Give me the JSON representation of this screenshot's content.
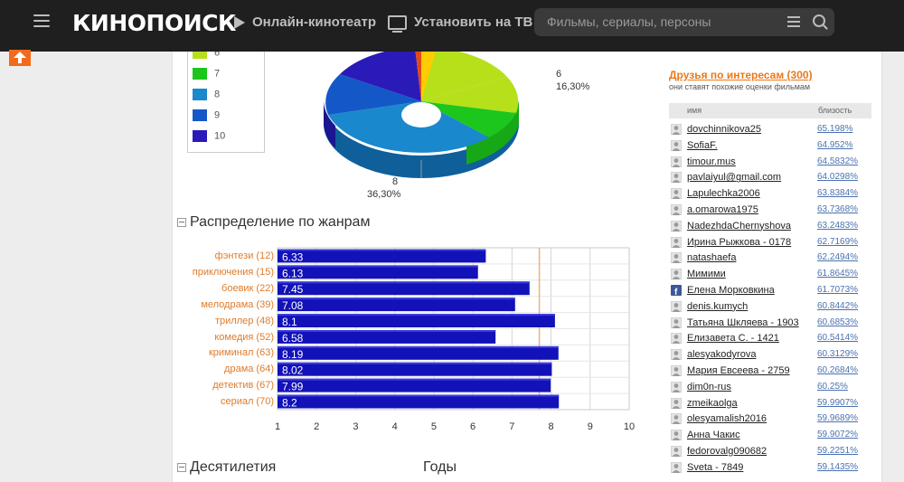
{
  "header": {
    "logo": "КИНОПОИСК",
    "nav": [
      "Онлайн-кинотеатр",
      "Установить на ТВ"
    ],
    "search_placeholder": "Фильмы, сериалы, персоны"
  },
  "legend": {
    "items": [
      {
        "label": "6",
        "color": "#b6e01a"
      },
      {
        "label": "7",
        "color": "#1cc61c"
      },
      {
        "label": "8",
        "color": "#1a88cc"
      },
      {
        "label": "9",
        "color": "#1458c8"
      },
      {
        "label": "10",
        "color": "#2a1ab8"
      }
    ]
  },
  "pie_labels": {
    "six_value": "6",
    "six_pct": "16,30%",
    "eight_value": "8",
    "eight_pct": "36,30%"
  },
  "sections": {
    "genres": "Распределение по жанрам",
    "decades": "Десятилетия",
    "years": "Годы"
  },
  "chart_data": {
    "type": "bar",
    "categories": [
      "фэнтези (12)",
      "приключения (15)",
      "боевик (22)",
      "мелодрама (39)",
      "триллер (48)",
      "комедия (52)",
      "криминал (63)",
      "драма (64)",
      "детектив (67)",
      "сериал (70)"
    ],
    "values": [
      6.33,
      6.13,
      7.45,
      7.08,
      8.1,
      6.58,
      8.19,
      8.02,
      7.99,
      8.2
    ],
    "value_labels": [
      "6.33",
      "6.13",
      "7.45",
      "7.08",
      "8.1",
      "6.58",
      "8.19",
      "8.02",
      "7.99",
      "8.2"
    ],
    "xlim": [
      1,
      10
    ],
    "xticks": [
      "1",
      "2",
      "3",
      "4",
      "5",
      "6",
      "7",
      "8",
      "9",
      "10"
    ],
    "reference_line": 7.7,
    "bar_color": "#1212b8",
    "grid": true
  },
  "friends": {
    "title": "Друзья по интересам (300)",
    "subtitle": "они ставят похожие оценки фильмам",
    "col_name": "имя",
    "col_sim": "близость",
    "rows": [
      {
        "name": "dovchinnikova25",
        "pct": "65.198%"
      },
      {
        "name": "SofiaF.",
        "pct": "64.952%"
      },
      {
        "name": "timour.mus",
        "pct": "64.5832%"
      },
      {
        "name": "pavlaiyul@gmail.com",
        "pct": "64.0298%"
      },
      {
        "name": "Lapulechka2006",
        "pct": "63.8384%"
      },
      {
        "name": "a.omarowa1975",
        "pct": "63.7368%"
      },
      {
        "name": "NadezhdaChernyshova",
        "pct": "63.2483%"
      },
      {
        "name": "Ирина Рыжкова - 0178",
        "pct": "62.7169%"
      },
      {
        "name": "natashaefa",
        "pct": "62.2494%"
      },
      {
        "name": "Мимими",
        "pct": "61.8645%"
      },
      {
        "name": "Елена Морковкина",
        "pct": "61.7073%"
      },
      {
        "name": "denis.kumych",
        "pct": "60.8442%"
      },
      {
        "name": "Татьяна Шкляева - 1903",
        "pct": "60.6853%"
      },
      {
        "name": "Елизавета С. - 1421",
        "pct": "60.5414%"
      },
      {
        "name": "alesyakodyrova",
        "pct": "60.3129%"
      },
      {
        "name": "Мария Евсеева - 2759",
        "pct": "60.2684%"
      },
      {
        "name": "dim0n-rus",
        "pct": "60.25%"
      },
      {
        "name": "zmeikaolga",
        "pct": "59.9907%"
      },
      {
        "name": "olesyamalish2016",
        "pct": "59.9689%"
      },
      {
        "name": "Анна Чакис",
        "pct": "59.9072%"
      },
      {
        "name": "fedorovalg090682",
        "pct": "59.2251%"
      },
      {
        "name": "Sveta - 7849",
        "pct": "59.1435%"
      }
    ]
  }
}
